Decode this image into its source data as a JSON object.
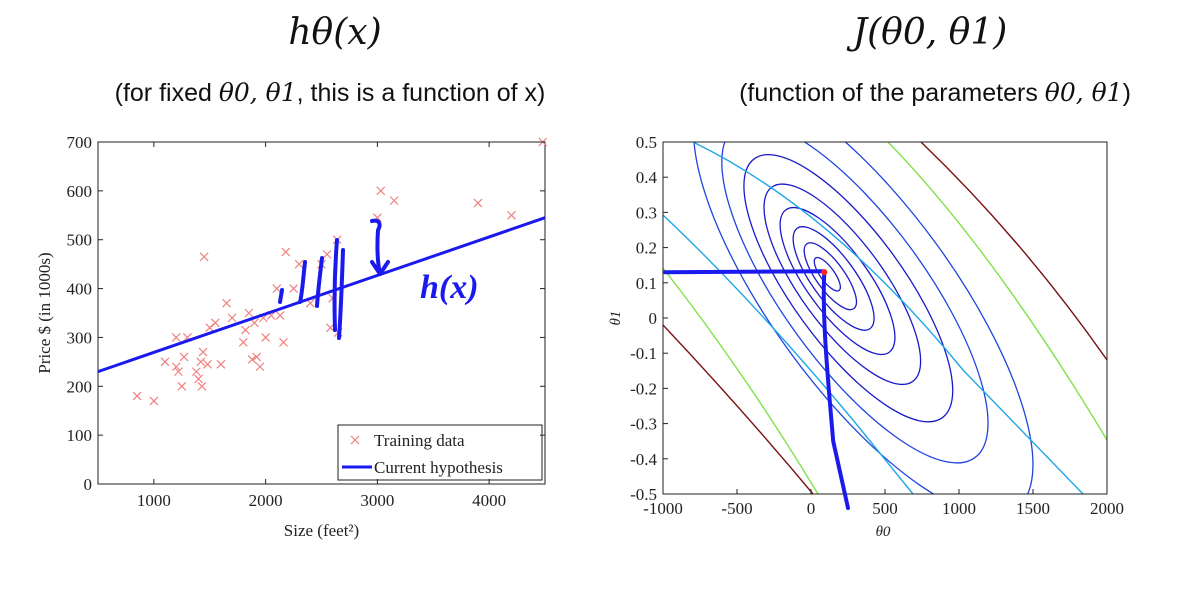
{
  "left": {
    "title": "hθ(x)",
    "subtitle_pre": "(for fixed ",
    "subtitle_math": "θ0, θ1",
    "subtitle_post": ", this is a function of x)"
  },
  "right": {
    "title": "J(θ0, θ1)",
    "subtitle_pre": "(function of the parameters ",
    "subtitle_math": "θ0, θ1",
    "subtitle_post": ")"
  },
  "chart_data": [
    {
      "type": "scatter",
      "title": "hθ(x)",
      "xlabel": "Size (feet²)",
      "ylabel": "Price $ (in 1000s)",
      "xlim": [
        500,
        4500
      ],
      "ylim": [
        0,
        700
      ],
      "xticks": [
        1000,
        2000,
        3000,
        4000
      ],
      "yticks": [
        0,
        100,
        200,
        300,
        400,
        500,
        600,
        700
      ],
      "series": [
        {
          "name": "Training data",
          "color": "#f08080",
          "marker": "x",
          "points": [
            [
              850,
              180
            ],
            [
              1000,
              170
            ],
            [
              1100,
              250
            ],
            [
              1200,
              300
            ],
            [
              1200,
              240
            ],
            [
              1220,
              230
            ],
            [
              1250,
              200
            ],
            [
              1270,
              260
            ],
            [
              1300,
              300
            ],
            [
              1380,
              230
            ],
            [
              1400,
              215
            ],
            [
              1420,
              250
            ],
            [
              1430,
              200
            ],
            [
              1440,
              270
            ],
            [
              1450,
              465
            ],
            [
              1480,
              245
            ],
            [
              1500,
              320
            ],
            [
              1550,
              330
            ],
            [
              1600,
              245
            ],
            [
              1650,
              370
            ],
            [
              1700,
              340
            ],
            [
              1800,
              290
            ],
            [
              1820,
              315
            ],
            [
              1850,
              350
            ],
            [
              1880,
              255
            ],
            [
              1900,
              330
            ],
            [
              1920,
              260
            ],
            [
              1950,
              240
            ],
            [
              1980,
              340
            ],
            [
              2000,
              300
            ],
            [
              2050,
              345
            ],
            [
              2100,
              400
            ],
            [
              2130,
              345
            ],
            [
              2160,
              290
            ],
            [
              2180,
              475
            ],
            [
              2250,
              400
            ],
            [
              2300,
              450
            ],
            [
              2400,
              370
            ],
            [
              2500,
              450
            ],
            [
              2550,
              470
            ],
            [
              2580,
              320
            ],
            [
              2600,
              380
            ],
            [
              2640,
              500
            ],
            [
              2650,
              310
            ],
            [
              3000,
              545
            ],
            [
              3030,
              600
            ],
            [
              3150,
              580
            ],
            [
              3900,
              575
            ],
            [
              4200,
              550
            ],
            [
              4480,
              700
            ]
          ]
        },
        {
          "name": "Current hypothesis",
          "color": "#1a1aee",
          "type": "line",
          "points": [
            [
              500,
              230
            ],
            [
              4500,
              545
            ]
          ]
        }
      ],
      "legend_position": "bottom-right",
      "annotations": [
        "h(x)"
      ]
    },
    {
      "type": "contour",
      "title": "J(θ0, θ1)",
      "xlabel": "θ0",
      "ylabel": "θ1",
      "xlim": [
        -1000,
        2000
      ],
      "ylim": [
        -0.5,
        0.5
      ],
      "xticks": [
        -1000,
        -500,
        0,
        500,
        1000,
        1500,
        2000
      ],
      "xtick_labels": [
        "-1000",
        "-500",
        "0",
        "500",
        "1000",
        "1500",
        "2000"
      ],
      "yticks": [
        -0.5,
        -0.4,
        -0.3,
        -0.2,
        -0.1,
        0,
        0.1,
        0.2,
        0.3,
        0.4,
        0.5
      ],
      "ytick_labels": [
        "-0.5",
        "-0.4",
        "-0.3",
        "-0.2",
        "-0.1",
        "0",
        "0.1",
        "0.2",
        "0.3",
        "0.4",
        "0.5"
      ],
      "minimum": {
        "theta0": 90,
        "theta1": 0.13
      },
      "marker_color": "#ff2020",
      "highlight_path": [
        [
          -1000,
          0.13
        ],
        [
          90,
          0.13
        ],
        [
          100,
          0.0
        ],
        [
          120,
          -0.2
        ],
        [
          150,
          -0.35
        ],
        [
          250,
          -0.5
        ]
      ]
    }
  ]
}
